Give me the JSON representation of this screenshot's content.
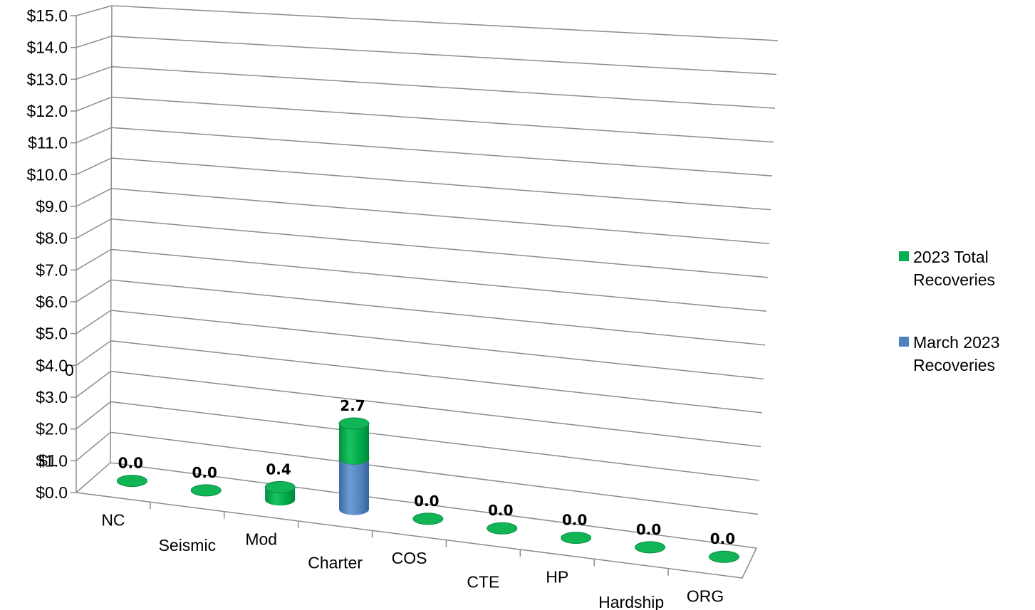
{
  "chart_data": {
    "type": "bar",
    "style": "3d-stacked-cylinder",
    "categories": [
      "NC",
      "Seismic",
      "Mod",
      "Charter",
      "COS",
      "CTE",
      "HP",
      "Hardship",
      "ORG"
    ],
    "series": [
      {
        "name": "March 2023 Recoveries",
        "color": "#4F81BD",
        "values": [
          0,
          0,
          0,
          1.6,
          0,
          0,
          0,
          0,
          0
        ]
      },
      {
        "name": "2023 Total Recoveries",
        "color": "#00B050",
        "values": [
          0.0,
          0.0,
          0.4,
          1.1,
          0.0,
          0.0,
          0.0,
          0.0,
          0.0
        ]
      }
    ],
    "data_labels": [
      "0.0",
      "0.0",
      "0.4",
      "2.7",
      "0.0",
      "0.0",
      "0.0",
      "0.0",
      "0.0"
    ],
    "ylim": [
      0,
      15
    ],
    "y_ticks": [
      "$0.0",
      "$1.0",
      "$2.0",
      "$3.0",
      "$4.0",
      "$5.0",
      "$6.0",
      "$7.0",
      "$8.0",
      "$9.0",
      "$10.0",
      "$11.0",
      "$12.0",
      "$13.0",
      "$14.0",
      "$15.0"
    ],
    "stray_labels": [
      "$1",
      "0"
    ],
    "legend": {
      "position": "right",
      "entries": [
        "2023 Total Recoveries",
        "March 2023 Recoveries"
      ]
    },
    "grid": true
  }
}
